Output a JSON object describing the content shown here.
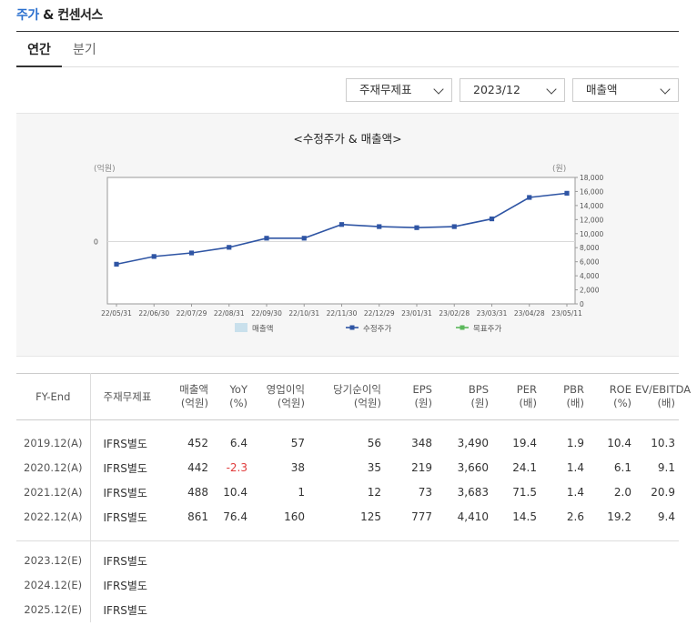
{
  "header": {
    "title_accent": "주가",
    "title_rest": " & 컨센서스"
  },
  "tabs": [
    {
      "label": "연간"
    },
    {
      "label": "분기"
    }
  ],
  "filters": {
    "statement": "주재무제표",
    "period": "2023/12",
    "metric": "매출액"
  },
  "chart_data": {
    "type": "line",
    "title": "<수정주가 & 매출액>",
    "y_left_label": "(억원)",
    "y_right_label": "(원)",
    "y_left_ticks": [
      "0"
    ],
    "y_right_ticks": [
      "0",
      "2,000",
      "4,000",
      "6,000",
      "8,000",
      "10,000",
      "12,000",
      "14,000",
      "16,000",
      "18,000"
    ],
    "y_right_range": [
      0,
      18000
    ],
    "categories": [
      "22/05/31",
      "22/06/30",
      "22/07/29",
      "22/08/31",
      "22/09/30",
      "22/10/31",
      "22/11/30",
      "22/12/29",
      "23/01/31",
      "23/02/28",
      "23/03/31",
      "23/04/28",
      "23/05/11"
    ],
    "series": [
      {
        "name": "수정주가",
        "color": "#2f55a4",
        "values": [
          5650,
          6750,
          7250,
          8050,
          9350,
          9350,
          11300,
          11000,
          10850,
          11000,
          12100,
          15150,
          15750
        ]
      }
    ],
    "legend": [
      {
        "name": "매출액",
        "color": "#c9e0ec"
      },
      {
        "name": "수정주가",
        "color": "#2f55a4"
      },
      {
        "name": "목표주가",
        "color": "#5cb85c"
      }
    ]
  },
  "table": {
    "headers": [
      {
        "l1": "FY-End",
        "l2": ""
      },
      {
        "l1": "주재무제표",
        "l2": ""
      },
      {
        "l1": "매출액",
        "l2": "(억원)"
      },
      {
        "l1": "YoY",
        "l2": "(%)"
      },
      {
        "l1": "영업이익",
        "l2": "(억원)"
      },
      {
        "l1": "당기순이익",
        "l2": "(억원)"
      },
      {
        "l1": "EPS",
        "l2": "(원)"
      },
      {
        "l1": "BPS",
        "l2": "(원)"
      },
      {
        "l1": "PER",
        "l2": "(배)"
      },
      {
        "l1": "PBR",
        "l2": "(배)"
      },
      {
        "l1": "ROE",
        "l2": "(%)"
      },
      {
        "l1": "EV/EBITDA",
        "l2": "(배)"
      }
    ],
    "actual_rows": [
      [
        "2019.12(A)",
        "IFRS별도",
        "452",
        "6.4",
        "57",
        "56",
        "348",
        "3,490",
        "19.4",
        "1.9",
        "10.4",
        "10.3"
      ],
      [
        "2020.12(A)",
        "IFRS별도",
        "442",
        "-2.3",
        "38",
        "35",
        "219",
        "3,660",
        "24.1",
        "1.4",
        "6.1",
        "9.1"
      ],
      [
        "2021.12(A)",
        "IFRS별도",
        "488",
        "10.4",
        "1",
        "12",
        "73",
        "3,683",
        "71.5",
        "1.4",
        "2.0",
        "20.9"
      ],
      [
        "2022.12(A)",
        "IFRS별도",
        "861",
        "76.4",
        "160",
        "125",
        "777",
        "4,410",
        "14.5",
        "2.6",
        "19.2",
        "9.4"
      ]
    ],
    "estimate_rows": [
      [
        "2023.12(E)",
        "IFRS별도",
        "",
        "",
        "",
        "",
        "",
        "",
        "",
        "",
        "",
        ""
      ],
      [
        "2024.12(E)",
        "IFRS별도",
        "",
        "",
        "",
        "",
        "",
        "",
        "",
        "",
        "",
        ""
      ],
      [
        "2025.12(E)",
        "IFRS별도",
        "",
        "",
        "",
        "",
        "",
        "",
        "",
        "",
        "",
        ""
      ]
    ],
    "negative_color": "#e03a3a"
  }
}
